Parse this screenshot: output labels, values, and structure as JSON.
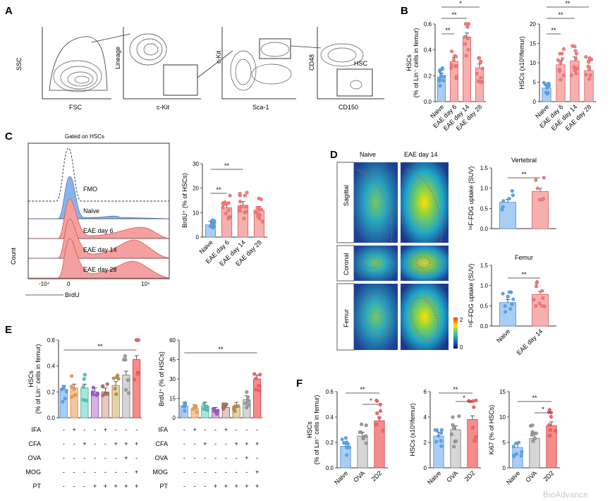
{
  "colors": {
    "naive_blue": "#5aa5e8",
    "eae_red": "#f08080",
    "red_fill": "#f4a4a4",
    "gray": "#9e9e9e",
    "purple": "#a35fc0",
    "teal": "#58c7b6",
    "green": "#4caf50",
    "orange": "#e8a050",
    "brown": "#b8955a",
    "line": "#333333"
  },
  "panel_a": {
    "letter": "A",
    "plots": [
      {
        "x": "FSC",
        "y": "SSC"
      },
      {
        "x": "c-Kit",
        "y": "Lineage"
      },
      {
        "x": "Sca-1",
        "y": "c-Kit"
      },
      {
        "x": "CD150",
        "y": "CD48",
        "gate": "HSC"
      }
    ]
  },
  "panel_b": {
    "letter": "B",
    "chart_data": [
      {
        "type": "bar",
        "ylabel_line1": "HSCs",
        "ylabel_line2": "(% of Lin⁻ cells in femur)",
        "categories": [
          "Naive",
          "EAE day 6",
          "EAE day 14",
          "EAE day 28"
        ],
        "ylim": [
          0,
          0.6
        ],
        "yticks": [
          "0.0",
          "0.2",
          "0.4",
          "0.6"
        ],
        "values": [
          0.19,
          0.31,
          0.5,
          0.26
        ],
        "sig": [
          "**",
          "**",
          "*"
        ]
      },
      {
        "type": "bar",
        "ylabel": "HSCs (x10³/femur)",
        "categories": [
          "Naive",
          "EAE day 6",
          "EAE day 14",
          "EAE day 28"
        ],
        "ylim": [
          0,
          20
        ],
        "yticks": [
          "0",
          "5",
          "10",
          "15",
          "20"
        ],
        "values": [
          3.5,
          9.5,
          10.5,
          8.0
        ],
        "sig": [
          "**",
          "**",
          "**"
        ]
      }
    ]
  },
  "panel_c": {
    "letter": "C",
    "title": "Gated on HSCs",
    "rows": [
      "FMO",
      "Naive",
      "EAE day 6",
      "EAE day 14",
      "EAE day 28"
    ],
    "ylabel": "Count",
    "xlabel": "BrdU",
    "xticks": [
      "-10⁴",
      "0",
      "10⁴"
    ],
    "chart_data": {
      "type": "bar",
      "ylabel": "BrdU⁺ (% of HSCs)",
      "categories": [
        "Naive",
        "EAE day 6",
        "EAE day 14",
        "EAE day 28"
      ],
      "ylim": [
        0,
        30
      ],
      "yticks": [
        "0",
        "10",
        "20",
        "30"
      ],
      "values": [
        5,
        12,
        13,
        11
      ],
      "sig": [
        "**",
        "**"
      ]
    }
  },
  "panel_d": {
    "letter": "D",
    "col_labels": [
      "Naive",
      "EAE day 14"
    ],
    "row_labels": [
      "Sagittal",
      "Coronal",
      "Femur"
    ],
    "colorbar": [
      "2",
      "0"
    ],
    "charts": [
      {
        "type": "bar",
        "title": "Vertebral",
        "ylabel": "¹⁸F-FDG uptake (SUV)",
        "categories": [
          "Naive",
          "EAE day 14"
        ],
        "ylim": [
          0,
          1.5
        ],
        "yticks": [
          "0.0",
          "0.5",
          "1.0",
          "1.5"
        ],
        "values": [
          0.65,
          0.92
        ],
        "sig": [
          "**"
        ]
      },
      {
        "type": "bar",
        "title": "Femur",
        "ylabel": "¹⁸F-FDG uptake (SUV)",
        "categories": [
          "Naive",
          "EAE day 14"
        ],
        "ylim": [
          0,
          1.5
        ],
        "yticks": [
          "0.0",
          "0.5",
          "1.0",
          "1.5"
        ],
        "values": [
          0.58,
          0.78
        ],
        "sig": [
          "**"
        ]
      }
    ]
  },
  "panel_e": {
    "letter": "E",
    "row_labels": [
      "IFA",
      "CFA",
      "OVA",
      "MOG",
      "PT"
    ],
    "matrix": [
      [
        "-",
        "+",
        "-",
        "-",
        "+",
        "-",
        "-",
        "-"
      ],
      [
        "-",
        "-",
        "+",
        "-",
        "-",
        "+",
        "+",
        "+"
      ],
      [
        "-",
        "-",
        "-",
        "-",
        "-",
        "-",
        "+",
        "-"
      ],
      [
        "-",
        "-",
        "-",
        "-",
        "-",
        "-",
        "-",
        "+"
      ],
      [
        "-",
        "-",
        "-",
        "+",
        "+",
        "+",
        "+",
        "+"
      ]
    ],
    "chart_data": [
      {
        "type": "bar",
        "ylabel_line1": "HSCs",
        "ylabel_line2": "(% of Lin⁻ cells in femur)",
        "ylim": [
          0,
          0.6
        ],
        "yticks": [
          "0.0",
          "0.2",
          "0.4",
          "0.6"
        ],
        "values": [
          0.22,
          0.23,
          0.23,
          0.2,
          0.2,
          0.25,
          0.33,
          0.45
        ],
        "sig": [
          "**"
        ]
      },
      {
        "type": "bar",
        "ylabel": "BrdU⁺ (% of HSCs)",
        "ylim": [
          0,
          60
        ],
        "yticks": [
          "0",
          "15",
          "30",
          "45",
          "60"
        ],
        "values": [
          9,
          7,
          9,
          5,
          8,
          9,
          14,
          30
        ],
        "sig": [
          "**"
        ]
      }
    ]
  },
  "panel_f": {
    "letter": "F",
    "chart_data": [
      {
        "type": "bar",
        "ylabel_line1": "HSCs",
        "ylabel_line2": "(% of Lin⁻ cells in femur)",
        "categories": [
          "Naive",
          "OVA",
          "2D2"
        ],
        "ylim": [
          0,
          0.6
        ],
        "yticks": [
          "0.0",
          "0.2",
          "0.4",
          "0.6"
        ],
        "values": [
          0.17,
          0.25,
          0.37
        ],
        "sig": [
          "**",
          "*"
        ]
      },
      {
        "type": "bar",
        "ylabel": "HSCs (x10³/femur)",
        "categories": [
          "Naive",
          "OVA",
          "2D2"
        ],
        "ylim": [
          0,
          6
        ],
        "yticks": [
          "0",
          "2",
          "4",
          "6"
        ],
        "values": [
          2.5,
          3.0,
          3.8
        ],
        "sig": [
          "**",
          "*"
        ]
      },
      {
        "type": "bar",
        "ylabel": "Ki67 (% of HSCs)",
        "categories": [
          "Naive",
          "OVA",
          "2D2"
        ],
        "ylim": [
          0,
          15
        ],
        "yticks": [
          "0",
          "5",
          "10",
          "15"
        ],
        "values": [
          4.0,
          5.8,
          8.3
        ],
        "sig": [
          "**",
          "*"
        ]
      }
    ]
  },
  "watermark": "BioAdvance"
}
